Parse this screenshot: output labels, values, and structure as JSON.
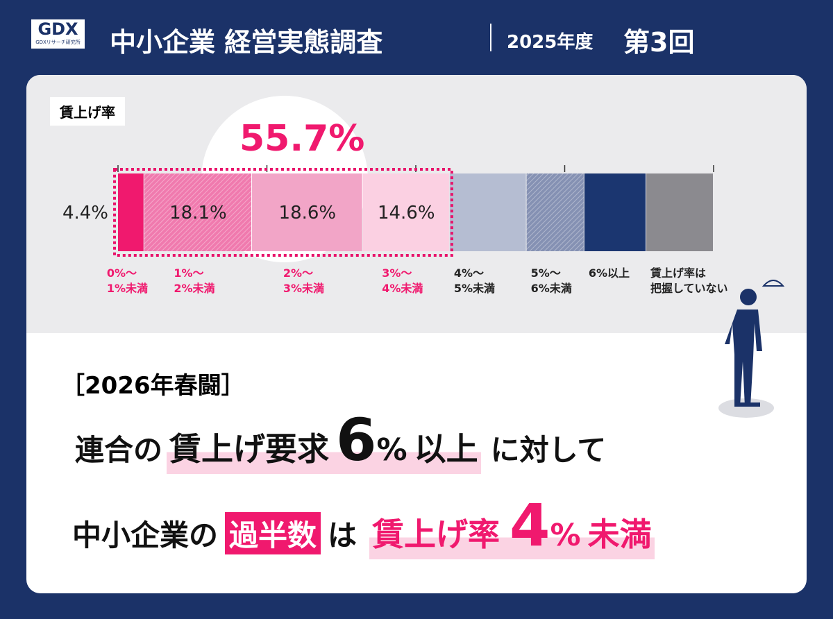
{
  "header": {
    "logo": "GDX",
    "logo_caption": "GDXリサーチ研究所",
    "title": "中小企業 経営実態調査",
    "year": "2025年度",
    "issue": "第3回"
  },
  "chart_data": {
    "type": "bar",
    "orientation": "horizontal",
    "stacked": true,
    "label": "賃上げ率",
    "annotation": "55.7%",
    "categories": [
      "0%〜\n1%未満",
      "1%〜\n2%未満",
      "2%〜\n3%未満",
      "3%〜\n4%未満",
      "4%〜\n5%未満",
      "5%〜\n6%未満",
      "6%以上",
      "賃上げ率は\n把握していない"
    ],
    "values": [
      4.4,
      18.1,
      18.6,
      14.6,
      12.9,
      9.7,
      10.4,
      11.3
    ],
    "value_labels": [
      "4.4%",
      "18.1%",
      "18.6%",
      "14.6%",
      null,
      null,
      null,
      null
    ],
    "colors": [
      "#f0196e",
      "#f07aae",
      "#f2a5c7",
      "#fbd0e2",
      "#b5bdd2",
      "#8591b3",
      "#1b3670",
      "#8b8a8f"
    ],
    "hatched": [
      false,
      true,
      false,
      false,
      false,
      true,
      false,
      false
    ],
    "xlim": [
      0,
      100
    ],
    "xticks": [
      0,
      25,
      50,
      75,
      100
    ]
  },
  "headline": {
    "tag": "［2026年春闘］",
    "line1": [
      "連合の",
      "賃上げ要求",
      "6",
      "%",
      "以上",
      "に対して"
    ],
    "line2": [
      "中小企業の",
      "過半数",
      "は",
      "賃上げ率",
      "4",
      "%",
      "未満"
    ]
  }
}
